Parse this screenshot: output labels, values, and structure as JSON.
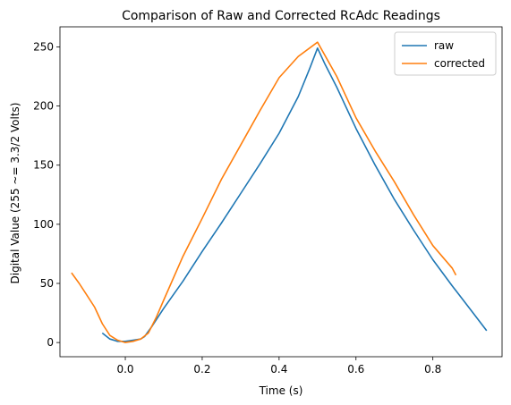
{
  "chart_data": {
    "type": "line",
    "title": "Comparison of Raw and Corrected RcAdc Readings",
    "xlabel": "Time (s)",
    "ylabel": "Digital Value (255 ~= 3.3/2 Volts)",
    "xlim": [
      -0.17,
      0.98
    ],
    "ylim": [
      -12,
      267
    ],
    "xticks": [
      0.0,
      0.2,
      0.4,
      0.6,
      0.8
    ],
    "xtick_labels": [
      "0.0",
      "0.2",
      "0.4",
      "0.6",
      "0.8"
    ],
    "yticks": [
      0,
      50,
      100,
      150,
      200,
      250
    ],
    "ytick_labels": [
      "0",
      "50",
      "100",
      "150",
      "200",
      "250"
    ],
    "grid": false,
    "legend_position": "top-right",
    "series": [
      {
        "name": "raw",
        "color": "#1f77b4",
        "x": [
          -0.06,
          -0.04,
          -0.02,
          0.0,
          0.02,
          0.04,
          0.05,
          0.07,
          0.1,
          0.15,
          0.2,
          0.25,
          0.3,
          0.35,
          0.4,
          0.45,
          0.48,
          0.5,
          0.52,
          0.55,
          0.6,
          0.65,
          0.7,
          0.75,
          0.8,
          0.85,
          0.9,
          0.94
        ],
        "y": [
          8,
          3,
          1,
          1,
          2,
          3,
          5,
          14,
          29,
          52,
          77,
          101,
          126,
          151,
          177,
          208,
          232,
          249,
          235,
          216,
          181,
          150,
          121,
          95,
          70,
          48,
          27,
          10
        ]
      },
      {
        "name": "corrected",
        "color": "#ff7f0e",
        "x": [
          -0.14,
          -0.12,
          -0.1,
          -0.08,
          -0.06,
          -0.04,
          -0.02,
          0.0,
          0.02,
          0.04,
          0.06,
          0.08,
          0.1,
          0.15,
          0.2,
          0.25,
          0.3,
          0.35,
          0.4,
          0.45,
          0.5,
          0.55,
          0.6,
          0.65,
          0.7,
          0.75,
          0.8,
          0.85,
          0.86
        ],
        "y": [
          59,
          50,
          40,
          30,
          16,
          6,
          2,
          0,
          1,
          3,
          8,
          21,
          36,
          73,
          105,
          138,
          167,
          196,
          224,
          242,
          254,
          225,
          190,
          162,
          136,
          108,
          82,
          63,
          57
        ]
      }
    ]
  }
}
